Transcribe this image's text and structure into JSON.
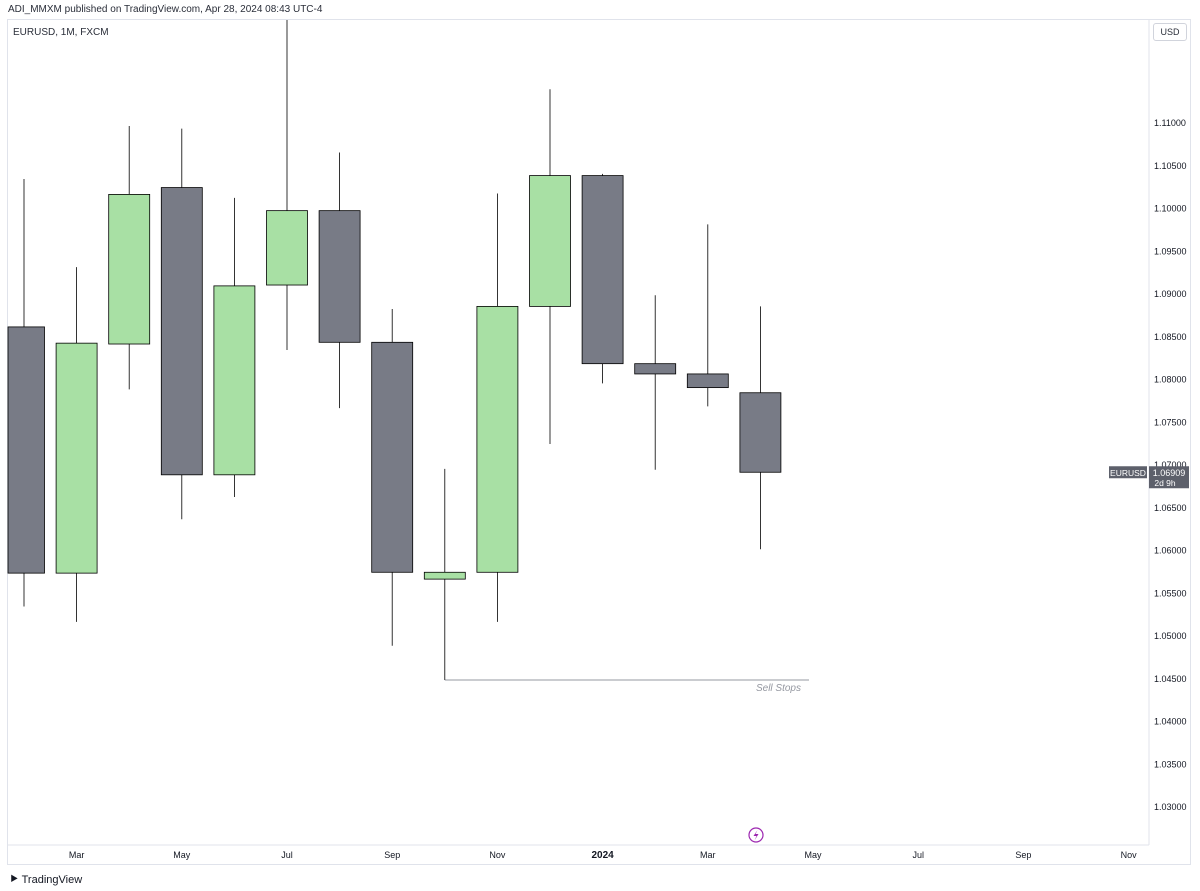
{
  "header": {
    "published_text": "ADI_MMXM published on TradingView.com, Apr 28, 2024 08:43 UTC-4",
    "symbol_legend": "EURUSD, 1M, FXCM",
    "currency_button": "USD"
  },
  "footer": {
    "brand": "TradingView"
  },
  "colors": {
    "up": "#a8e0a4",
    "down": "#787b86",
    "wick": "#000000",
    "badge": "#5d606b",
    "grid": "#e0e3eb",
    "annotation": "#9598a1",
    "logo_icon": "#9c27b0"
  },
  "icons": {
    "event_marker": "lightning-icon",
    "brand_logo": "tradingview-logo-icon"
  },
  "chart_data": {
    "type": "candlestick",
    "title": "",
    "symbol": "EURUSD",
    "interval": "1M",
    "source": "FXCM",
    "ylim": [
      1.0255,
      1.122
    ],
    "y_ticks": [
      "1.03000",
      "1.03500",
      "1.04000",
      "1.04500",
      "1.05000",
      "1.05500",
      "1.06000",
      "1.06500",
      "1.07000",
      "1.07500",
      "1.08000",
      "1.08500",
      "1.09000",
      "1.09500",
      "1.10000",
      "1.10500",
      "1.11000"
    ],
    "x_ticks": [
      {
        "label": "Mar",
        "slot": 1
      },
      {
        "label": "May",
        "slot": 3
      },
      {
        "label": "Jul",
        "slot": 5
      },
      {
        "label": "Sep",
        "slot": 7
      },
      {
        "label": "Nov",
        "slot": 9
      },
      {
        "label": "2024",
        "slot": 11,
        "bold": true
      },
      {
        "label": "Mar",
        "slot": 13
      },
      {
        "label": "May",
        "slot": 15
      },
      {
        "label": "Jul",
        "slot": 17
      },
      {
        "label": "Sep",
        "slot": 19
      },
      {
        "label": "Nov",
        "slot": 21
      }
    ],
    "candles": [
      {
        "month": "Jan 2023",
        "open": 1.0861,
        "high": 1.1034,
        "low": 1.0534,
        "close": 1.0573
      },
      {
        "month": "Feb 2023",
        "open": 1.0573,
        "high": 1.0931,
        "low": 1.0516,
        "close": 1.0842
      },
      {
        "month": "Mar 2023",
        "open": 1.0841,
        "high": 1.1096,
        "low": 1.0788,
        "close": 1.1016
      },
      {
        "month": "Apr 2023",
        "open": 1.1024,
        "high": 1.1093,
        "low": 1.0636,
        "close": 1.0688
      },
      {
        "month": "May 2023",
        "open": 1.0688,
        "high": 1.1012,
        "low": 1.0662,
        "close": 1.0909
      },
      {
        "month": "Jun 2023",
        "open": 1.091,
        "high": 1.1276,
        "low": 1.0834,
        "close": 1.0997
      },
      {
        "month": "Jul 2023",
        "open": 1.0997,
        "high": 1.1065,
        "low": 1.0766,
        "close": 1.0843
      },
      {
        "month": "Aug 2023",
        "open": 1.0843,
        "high": 1.0882,
        "low": 1.0488,
        "close": 1.0574
      },
      {
        "month": "Sep 2023",
        "open": 1.0566,
        "high": 1.0695,
        "low": 1.0448,
        "close": 1.0574
      },
      {
        "month": "Oct 2023",
        "open": 1.0574,
        "high": 1.1017,
        "low": 1.0516,
        "close": 1.0885
      },
      {
        "month": "Nov 2023",
        "open": 1.0885,
        "high": 1.1139,
        "low": 1.0724,
        "close": 1.1038
      },
      {
        "month": "Dec 2023",
        "open": 1.1038,
        "high": 1.104,
        "low": 1.0795,
        "close": 1.0818
      },
      {
        "month": "Jan 2024",
        "open": 1.0818,
        "high": 1.0898,
        "low": 1.0694,
        "close": 1.0806
      },
      {
        "month": "Feb 2024",
        "open": 1.0806,
        "high": 1.0981,
        "low": 1.0768,
        "close": 1.079
      },
      {
        "month": "Mar 2024",
        "open": 1.0784,
        "high": 1.0885,
        "low": 1.0601,
        "close": 1.0691
      }
    ],
    "last_price": {
      "symbol": "EURUSD",
      "value": "1.06909",
      "countdown": "2d 9h",
      "price": 1.0691
    },
    "annotations": [
      {
        "type": "horizontal_ray",
        "price": 1.0448,
        "from_candle": 8,
        "to_candle": 15,
        "label": "Sell Stops"
      }
    ]
  }
}
